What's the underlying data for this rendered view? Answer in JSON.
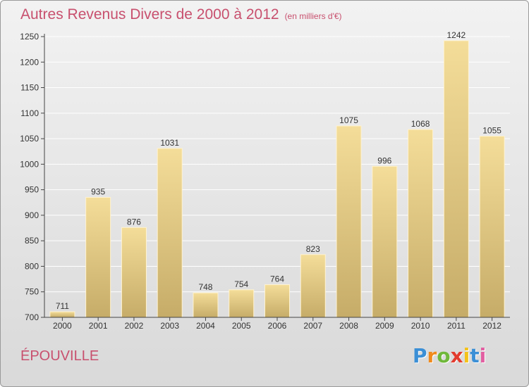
{
  "header": {
    "title": "Autres Revenus Divers de 2000 à 2012",
    "subtitle": "(en milliers d'€)"
  },
  "footer": {
    "commune": "ÉPOUVILLE",
    "logo_text": "Proxiti",
    "logo_letters": [
      "P",
      "r",
      "o",
      "x",
      "i",
      "t",
      "i"
    ],
    "logo_colors": [
      "#3b8fd6",
      "#f08a1c",
      "#6fb83a",
      "#e23b2e",
      "#f4c21b",
      "#3b8fd6",
      "#e25fa2"
    ]
  },
  "colors": {
    "title": "#c8506e",
    "bar_light": "#f4dd99",
    "bar_dark": "#c6ac68",
    "grid": "#ffffff"
  },
  "chart_data": {
    "type": "bar",
    "title": "Autres Revenus Divers de 2000 à 2012",
    "subtitle": "(en milliers d'€)",
    "categories": [
      "2000",
      "2001",
      "2002",
      "2003",
      "2004",
      "2005",
      "2006",
      "2007",
      "2008",
      "2009",
      "2010",
      "2011",
      "2012"
    ],
    "values": [
      711,
      935,
      876,
      1031,
      748,
      754,
      764,
      823,
      1075,
      996,
      1068,
      1242,
      1055
    ],
    "ylim": [
      700,
      1250
    ],
    "yticks": [
      700,
      750,
      800,
      850,
      900,
      950,
      1000,
      1050,
      1100,
      1150,
      1200,
      1250
    ],
    "grid": "horizontal",
    "xlabel": "",
    "ylabel": ""
  }
}
